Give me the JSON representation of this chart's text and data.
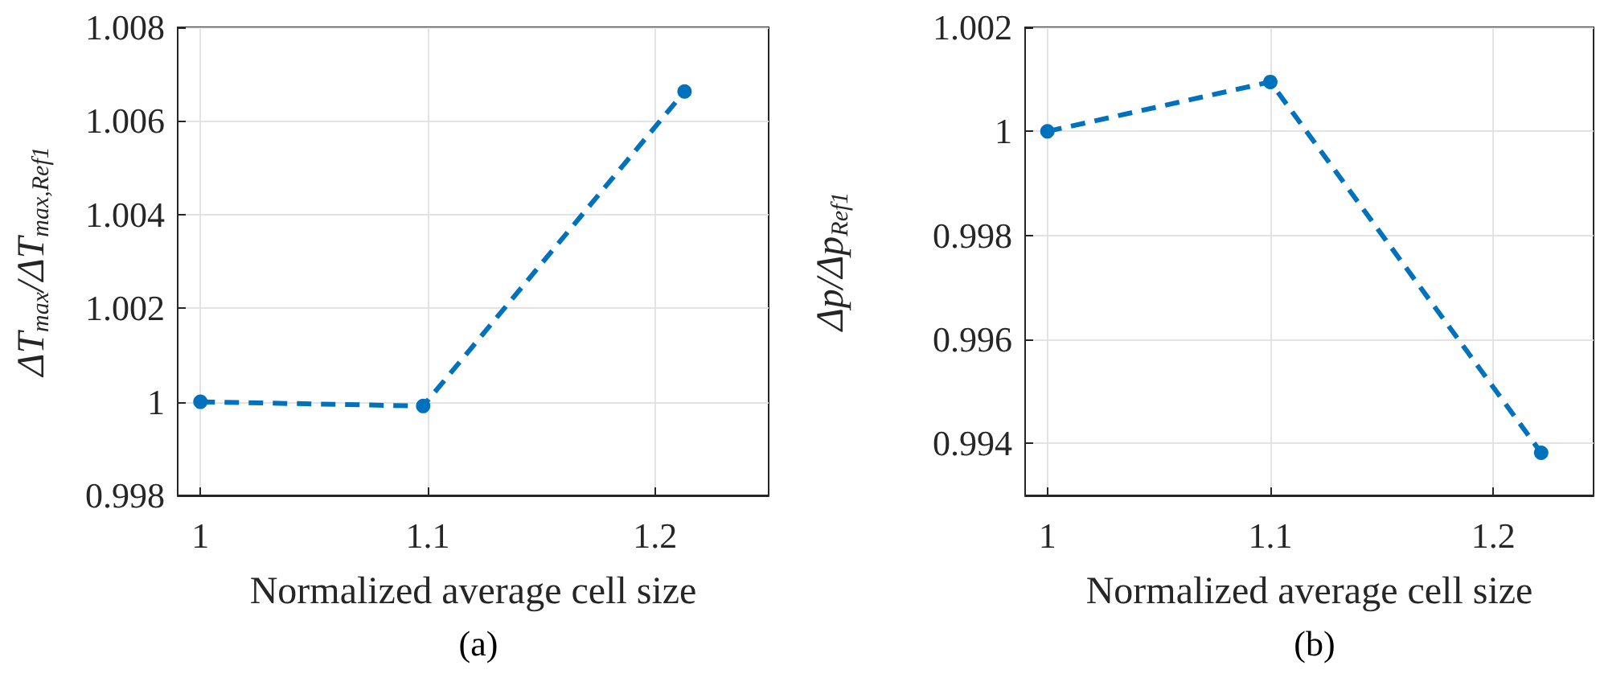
{
  "chart_data": [
    {
      "type": "line",
      "title": "(a)",
      "xlabel": "Normalized average cell size",
      "ylabel": "ΔT$_{max}$/ΔT$_{max,Ref1}$",
      "x": [
        1,
        1.098,
        1.213
      ],
      "series": [
        {
          "color": "#0072bd",
          "values": [
            1.0,
            0.99991,
            1.00663
          ]
        }
      ],
      "xlim": [
        0.99,
        1.25
      ],
      "xticks": [
        1,
        1.1,
        1.2
      ],
      "ylim": [
        0.998,
        1.008
      ],
      "yticks": [
        0.998,
        1,
        1.002,
        1.004,
        1.006,
        1.008
      ],
      "grid": true,
      "marker": "circle",
      "line_style": "dashed"
    },
    {
      "type": "line",
      "title": "(b)",
      "xlabel": "Normalized average cell size",
      "ylabel": "Δp/Δp$_{Ref1}$",
      "x": [
        1,
        1.1,
        1.2215
      ],
      "series": [
        {
          "color": "#0072bd",
          "values": [
            1.0,
            1.00095,
            0.99382
          ]
        }
      ],
      "xlim": [
        0.99,
        1.245
      ],
      "xticks": [
        1,
        1.1,
        1.2
      ],
      "ylim": [
        0.993,
        1.002
      ],
      "yticks": [
        0.994,
        0.996,
        0.998,
        1,
        1.002
      ],
      "grid": true,
      "marker": "circle",
      "line_style": "dashed"
    }
  ]
}
